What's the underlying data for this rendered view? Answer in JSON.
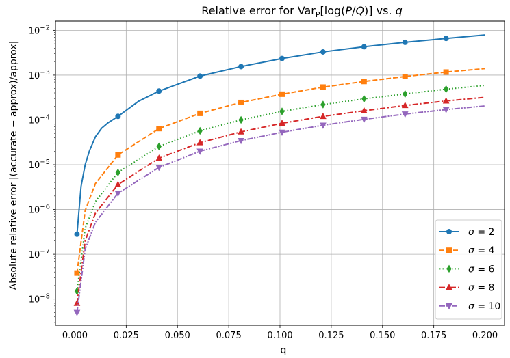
{
  "chart_data": {
    "type": "line",
    "title_parts": {
      "pre": "Relative error for Var",
      "sub": "P",
      "mid": "[log(",
      "it1": "P",
      "slash": "/",
      "it2": "Q",
      "post": ")] vs. ",
      "it3": "q"
    },
    "xlabel": "q",
    "ylabel": "Absolute relative error |(accurate − approx)/approx|",
    "yscale": "log",
    "xlim": [
      -0.0095,
      0.2095
    ],
    "ylim": [
      2.6e-09,
      0.016
    ],
    "xticks": [
      0.0,
      0.025,
      0.05,
      0.075,
      0.1,
      0.125,
      0.15,
      0.175,
      0.2
    ],
    "xtick_labels": [
      "0.000",
      "0.025",
      "0.050",
      "0.075",
      "0.100",
      "0.125",
      "0.150",
      "0.175",
      "0.200"
    ],
    "yticks": [
      -8,
      -7,
      -6,
      -5,
      -4,
      -3,
      -2
    ],
    "ytick_base": "10",
    "grid": true,
    "legend_position": "lower-right",
    "series": [
      {
        "name_prefix": "σ",
        "name_value": " = 2",
        "color": "#1f77b4",
        "dash": "",
        "marker": "circle",
        "x": [
          0.001,
          0.003,
          0.005,
          0.007,
          0.01,
          0.013,
          0.016,
          0.021,
          0.031,
          0.041,
          0.061,
          0.081,
          0.101,
          0.121,
          0.141,
          0.161,
          0.181,
          0.2
        ],
        "y": [
          2.8e-07,
          3.3e-06,
          1e-05,
          2e-05,
          4.2e-05,
          6.5e-05,
          8.5e-05,
          0.00012,
          0.00026,
          0.00044,
          0.00095,
          0.00155,
          0.00235,
          0.0033,
          0.0043,
          0.0054,
          0.0066,
          0.0079
        ],
        "markers": [
          0,
          7,
          9,
          10,
          11,
          12,
          13,
          14,
          15,
          16
        ]
      },
      {
        "name_prefix": "σ",
        "name_value": " = 4",
        "color": "#ff7f0e",
        "dash": "7,3",
        "marker": "square",
        "x": [
          0.001,
          0.005,
          0.01,
          0.021,
          0.041,
          0.061,
          0.081,
          0.101,
          0.121,
          0.141,
          0.161,
          0.181,
          0.2
        ],
        "y": [
          3.8e-08,
          9.5e-07,
          3.8e-06,
          1.65e-05,
          6.4e-05,
          0.00014,
          0.000245,
          0.000375,
          0.00054,
          0.00072,
          0.00093,
          0.00117,
          0.0014
        ],
        "markers": [
          0,
          3,
          4,
          5,
          6,
          7,
          8,
          9,
          10,
          11
        ]
      },
      {
        "name_prefix": "σ",
        "name_value": " = 6",
        "color": "#2ca02c",
        "dash": "1.5,3",
        "marker": "diamond",
        "x": [
          0.001,
          0.005,
          0.01,
          0.021,
          0.041,
          0.061,
          0.081,
          0.101,
          0.121,
          0.141,
          0.161,
          0.181,
          0.2
        ],
        "y": [
          1.5e-08,
          3.8e-07,
          1.5e-06,
          6.7e-06,
          2.55e-05,
          5.7e-05,
          0.0001,
          0.000155,
          0.00022,
          0.000295,
          0.00038,
          0.000485,
          0.00059
        ],
        "markers": [
          0,
          3,
          4,
          5,
          6,
          7,
          8,
          9,
          10,
          11
        ]
      },
      {
        "name_prefix": "σ",
        "name_value": " = 8",
        "color": "#d62728",
        "dash": "8,3,2,3",
        "marker": "triangle-up",
        "x": [
          0.001,
          0.005,
          0.01,
          0.021,
          0.041,
          0.061,
          0.081,
          0.101,
          0.121,
          0.141,
          0.161,
          0.181,
          0.2
        ],
        "y": [
          8e-09,
          2e-07,
          8.3e-07,
          3.6e-06,
          1.4e-05,
          3.1e-05,
          5.4e-05,
          8.4e-05,
          0.00012,
          0.00016,
          0.00021,
          0.000265,
          0.00032
        ],
        "markers": [
          0,
          3,
          4,
          5,
          6,
          7,
          8,
          9,
          10,
          11
        ]
      },
      {
        "name_prefix": "σ",
        "name_value": " = 10",
        "color": "#9467bd",
        "dash": "8,2,2,2,2,2",
        "marker": "triangle-down",
        "x": [
          0.001,
          0.005,
          0.01,
          0.021,
          0.041,
          0.061,
          0.081,
          0.101,
          0.121,
          0.141,
          0.161,
          0.181,
          0.2
        ],
        "y": [
          5e-09,
          1.3e-07,
          5.2e-07,
          2.3e-06,
          8.7e-06,
          2e-05,
          3.45e-05,
          5.3e-05,
          7.6e-05,
          0.000103,
          0.000135,
          0.00017,
          0.000205
        ],
        "markers": [
          0,
          3,
          4,
          5,
          6,
          7,
          8,
          9,
          10,
          11
        ]
      }
    ]
  }
}
